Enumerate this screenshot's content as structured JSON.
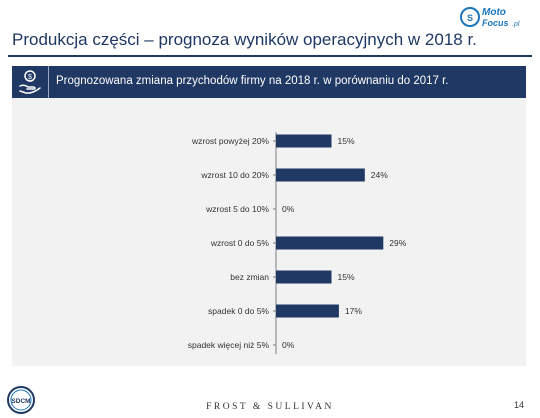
{
  "slide": {
    "title": "Produkcja części – prognoza wyników operacyjnych w 2018 r.",
    "logo_text": "MotoFocus",
    "logo_suffix": ".pl",
    "logo_sub": "Moto",
    "panel_header": "Prognozowana zmiana przychodów firmy na 2018 r. w porównaniu do 2017 r.",
    "footer_logo_text": "SDCM",
    "footer_brand": "FROST & SULLIVAN",
    "page_number": "14"
  },
  "colors": {
    "navy": "#1f3864",
    "bar": "#1f3864",
    "panel_bg": "#f2f2f2",
    "logo_blue": "#1b75bb"
  },
  "chart_data": {
    "type": "bar",
    "orientation": "horizontal",
    "categories": [
      "wzrost powyżej 20%",
      "wzrost 10 do 20%",
      "wzrost 5 do 10%",
      "wzrost 0 do 5%",
      "bez zmian",
      "spadek 0 do 5%",
      "spadek więcej niż 5%"
    ],
    "values": [
      15,
      24,
      0,
      29,
      15,
      17,
      0
    ],
    "data_labels": [
      "15%",
      "24%",
      "0%",
      "29%",
      "15%",
      "17%",
      "0%"
    ],
    "value_unit": "%",
    "xlim": [
      0,
      30
    ],
    "grid": false,
    "legend": "none"
  }
}
